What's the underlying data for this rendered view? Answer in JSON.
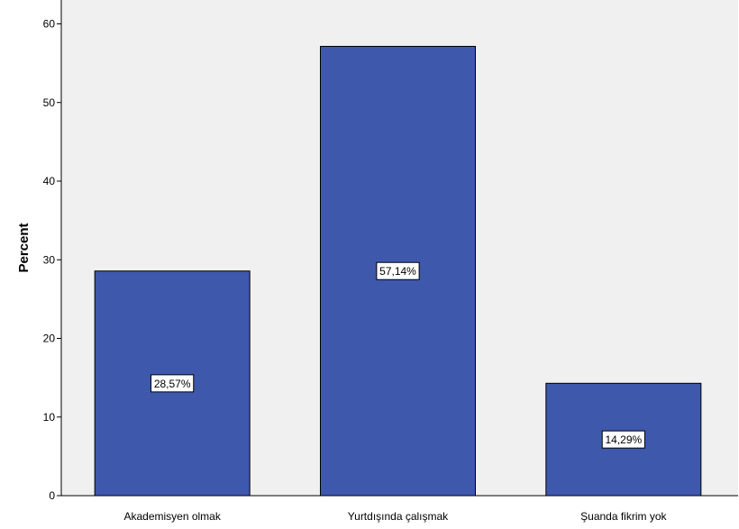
{
  "chart_data": {
    "type": "bar",
    "categories": [
      "Akademisyen olmak",
      "Yurtdışında çalışmak",
      "Şuanda fikrim yok"
    ],
    "values": [
      28.57,
      57.14,
      14.29
    ],
    "data_labels": [
      "28,57%",
      "57,14%",
      "14,29%"
    ],
    "ylabel": "Percent",
    "xlabel": "",
    "ylim": [
      0,
      60
    ],
    "yticks": [
      0,
      10,
      20,
      30,
      40,
      50,
      60
    ],
    "grid": false,
    "colors": {
      "plot_background": "#f0f0f0",
      "bar_fill": "#3e58ac",
      "bar_stroke": "#000000",
      "label_box_fill": "#ffffff"
    }
  }
}
